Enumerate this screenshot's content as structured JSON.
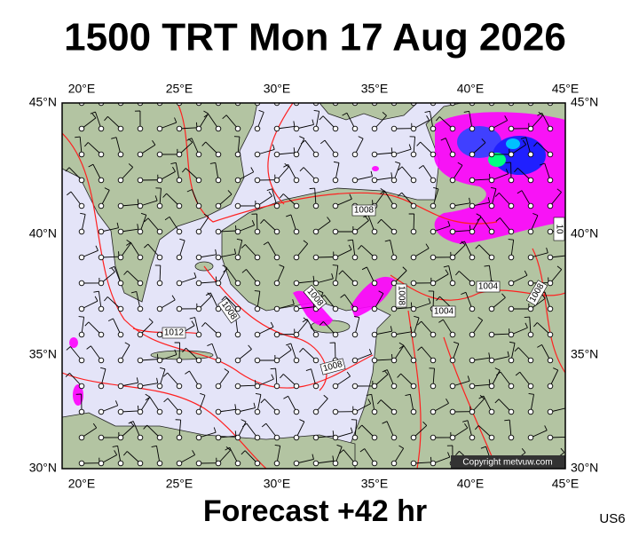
{
  "header": {
    "title": "1500 TRT Mon 17 Aug 2026"
  },
  "map": {
    "lon_labels": [
      "20°E",
      "25°E",
      "30°E",
      "35°E",
      "40°E",
      "45°E"
    ],
    "lat_labels": [
      "45°N",
      "40°N",
      "35°N",
      "30°N"
    ],
    "isobar_labels": [
      "1008",
      "1008",
      "1008",
      "1012",
      "1008",
      "1008",
      "1004",
      "1004",
      "1008",
      "10"
    ],
    "copyright": "Copyright metvuw.com"
  },
  "footer": {
    "forecast": "Forecast +42 hr",
    "code": "US6"
  }
}
